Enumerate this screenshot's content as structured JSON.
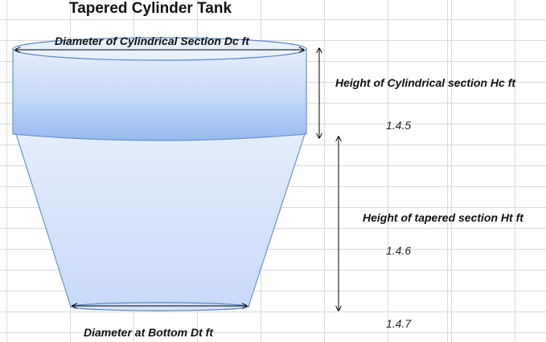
{
  "title": "Tapered Cylinder Tank",
  "labels": {
    "dc": "Diameter of Cylindrical Section Dc ft",
    "hc": "Height of Cylindrical section Hc ft",
    "ht": "Height of tapered section Ht ft",
    "dt": "Diameter at Bottom Dt ft"
  },
  "refs": {
    "hc": "1.4.5",
    "ht": "1.4.6",
    "dt": "1.4.7"
  },
  "colors": {
    "fill_light": "#e4eefc",
    "fill_dark": "#9bbdf0",
    "outline": "#5b86c5"
  }
}
